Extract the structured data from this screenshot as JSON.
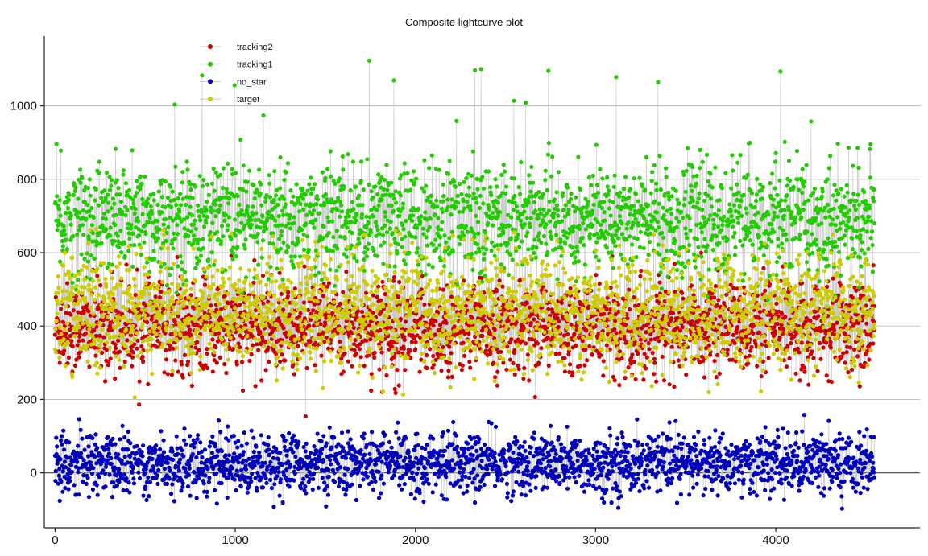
{
  "chart_data": {
    "type": "scatter",
    "title": "Composite lightcurve plot",
    "xlabel": "",
    "ylabel": "",
    "xlim": [
      -60,
      4800
    ],
    "ylim": [
      -150,
      1190
    ],
    "x_ticks": [
      0,
      1000,
      2000,
      3000,
      4000
    ],
    "y_ticks": [
      0,
      200,
      400,
      600,
      800,
      1000
    ],
    "grid": "horizontal",
    "legend_position": "top-left",
    "point_count": 4550,
    "series": [
      {
        "name": "tracking2",
        "color": "#cc0000",
        "mean": 395,
        "spread": 60,
        "spike_max": 500
      },
      {
        "name": "tracking1",
        "color": "#22cc00",
        "mean": 690,
        "spread": 75,
        "spike_max": 1130
      },
      {
        "name": "no_star",
        "color": "#0000bb",
        "mean": 25,
        "spread": 40,
        "spike_max": 160
      },
      {
        "name": "target",
        "color": "#cccc00",
        "mean": 440,
        "spread": 75,
        "spike_max": 680
      }
    ]
  }
}
